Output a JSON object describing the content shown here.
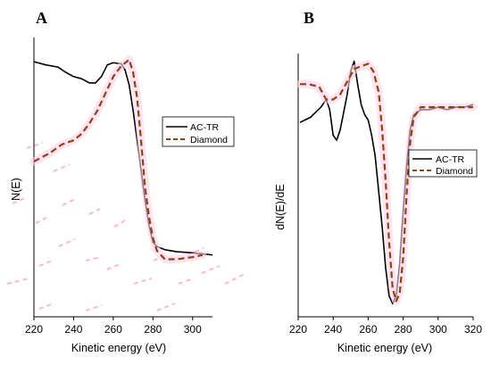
{
  "panels": [
    {
      "letter": "A"
    },
    {
      "letter": "B"
    }
  ],
  "colors": {
    "actr": "#000000",
    "diamond": "#8b4513",
    "artifact": "#ff9ecf"
  },
  "chart_data": [
    {
      "type": "line",
      "panel": "A",
      "xlabel": "Kinetic energy (eV)",
      "ylabel": "N(E)",
      "xlim": [
        220,
        310
      ],
      "ylim": [
        0,
        1
      ],
      "xticks": [
        "220",
        "240",
        "260",
        "280",
        "300"
      ],
      "show_y_tick_labels": false,
      "grid": false,
      "legend": {
        "position": "right",
        "entries": [
          "AC-TR",
          "Diamond"
        ]
      },
      "series": [
        {
          "name": "AC-TR",
          "style": "solid",
          "color": "#000000",
          "x": [
            220,
            226,
            232,
            236,
            240,
            244,
            248,
            251,
            254,
            257,
            260,
            264,
            266,
            268,
            270,
            272,
            274,
            276,
            278,
            280,
            282,
            286,
            292,
            300,
            310
          ],
          "y": [
            0.97,
            0.955,
            0.945,
            0.92,
            0.9,
            0.89,
            0.87,
            0.87,
            0.9,
            0.955,
            0.965,
            0.96,
            0.93,
            0.86,
            0.74,
            0.6,
            0.46,
            0.32,
            0.2,
            0.12,
            0.1,
            0.085,
            0.075,
            0.07,
            0.06
          ]
        },
        {
          "name": "Diamond",
          "style": "dashed",
          "color": "#8b4513",
          "x": [
            220,
            228,
            234,
            240,
            244,
            248,
            252,
            256,
            260,
            264,
            268,
            270,
            272,
            274,
            276,
            278,
            280,
            282,
            286,
            292,
            300,
            305
          ],
          "y": [
            0.5,
            0.54,
            0.58,
            0.6,
            0.63,
            0.68,
            0.74,
            0.82,
            0.9,
            0.95,
            0.98,
            0.92,
            0.8,
            0.6,
            0.38,
            0.24,
            0.14,
            0.08,
            0.04,
            0.04,
            0.05,
            0.06
          ]
        }
      ]
    },
    {
      "type": "line",
      "panel": "B",
      "xlabel": "Kinetic energy (eV)",
      "ylabel": "dN(E)/dE",
      "xlim": [
        220,
        320
      ],
      "ylim": [
        0,
        1
      ],
      "xticks": [
        "220",
        "240",
        "260",
        "280",
        "300",
        "320"
      ],
      "show_y_tick_labels": false,
      "grid": false,
      "legend": {
        "position": "right",
        "entries": [
          "AC-TR",
          "Diamond"
        ]
      },
      "series": [
        {
          "name": "AC-TR",
          "style": "solid",
          "color": "#000000",
          "x": [
            221,
            224,
            227,
            230,
            233,
            236,
            238,
            240,
            242,
            244,
            246,
            248,
            250,
            252,
            254,
            256,
            258,
            260,
            262,
            264,
            266,
            268,
            270,
            272,
            274,
            276,
            278,
            280,
            282,
            284,
            286,
            290,
            295,
            300,
            305,
            310,
            315,
            320
          ],
          "y": [
            0.73,
            0.74,
            0.75,
            0.77,
            0.79,
            0.82,
            0.78,
            0.68,
            0.66,
            0.7,
            0.77,
            0.84,
            0.93,
            0.97,
            0.88,
            0.8,
            0.76,
            0.74,
            0.68,
            0.6,
            0.46,
            0.32,
            0.16,
            0.05,
            0.02,
            0.05,
            0.18,
            0.38,
            0.56,
            0.7,
            0.76,
            0.78,
            0.78,
            0.79,
            0.78,
            0.79,
            0.79,
            0.8
          ]
        },
        {
          "name": "Diamond",
          "style": "dashed",
          "color": "#8b4513",
          "x": [
            221,
            226,
            232,
            236,
            240,
            244,
            248,
            252,
            256,
            260,
            263,
            266,
            268,
            270,
            272,
            274,
            276,
            278,
            280,
            282,
            284,
            286,
            290,
            300,
            310,
            320
          ],
          "y": [
            0.88,
            0.88,
            0.87,
            0.82,
            0.82,
            0.84,
            0.89,
            0.94,
            0.95,
            0.96,
            0.93,
            0.85,
            0.7,
            0.5,
            0.26,
            0.08,
            0.03,
            0.06,
            0.2,
            0.45,
            0.65,
            0.75,
            0.79,
            0.79,
            0.79,
            0.79
          ]
        }
      ]
    }
  ]
}
